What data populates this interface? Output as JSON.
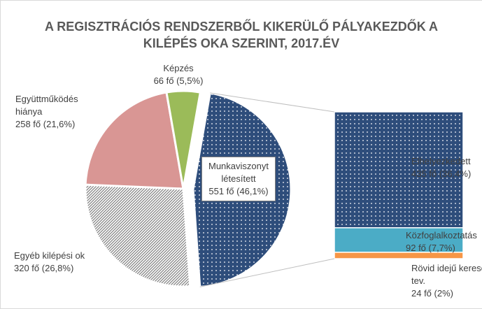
{
  "chart_data": {
    "type": "bar_of_pie",
    "title": "A REGISZTRÁCIÓS RENDSZERBŐL KIKERÜLŐ PÁLYAKEZDŐK A KILÉPÉS OKA SZERINT, 2017.ÉV",
    "categories": [
      "Munkaviszonyt létesített",
      "Egyéb kilépési ok",
      "Együttműködés hiánya",
      "Képzés"
    ],
    "values": [
      551,
      320,
      258,
      66
    ],
    "value_labels": [
      "551 fő (46,1%)",
      "320 fő (26,8%)",
      "258 fő (21,6%)",
      "66 fő (5,5%)"
    ],
    "colors": [
      "#2e4d7b",
      "#7f7f7f",
      "#d99694",
      "#9bbb59"
    ],
    "bar": {
      "categories": [
        "Elhelyezkedett",
        "Közfoglalkoztatás",
        "Rövid idejű kereső tev."
      ],
      "values": [
        435,
        92,
        24
      ],
      "value_labels": [
        "435 fő (36,4%)",
        "92 fő (7,7%)",
        "24 fő (2%)"
      ],
      "colors": [
        "#2e4d7b",
        "#4bacc6",
        "#f79646"
      ]
    }
  }
}
